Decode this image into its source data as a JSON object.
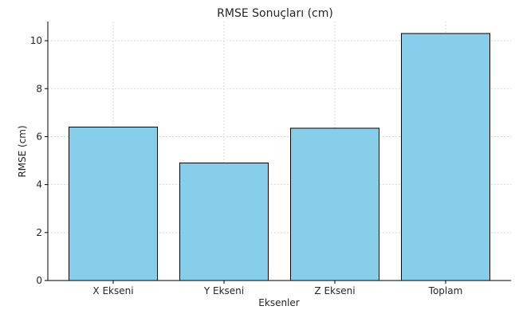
{
  "chart_data": {
    "type": "bar",
    "title": "RMSE Sonuçları (cm)",
    "xlabel": "Eksenler",
    "ylabel": "RMSE (cm)",
    "categories": [
      "X Ekseni",
      "Y Ekseni",
      "Z Ekseni",
      "Toplam"
    ],
    "values": [
      6.4,
      4.9,
      6.35,
      10.3
    ],
    "ylim": [
      0,
      10.8
    ],
    "yticks": [
      0,
      2,
      4,
      6,
      8,
      10
    ],
    "grid": true,
    "legend": "none",
    "colors": {
      "bar_fill": "#87ceeb",
      "bar_edge": "#000000",
      "grid": "#cfcfcf",
      "axis": "#000000",
      "text": "#262626"
    }
  }
}
